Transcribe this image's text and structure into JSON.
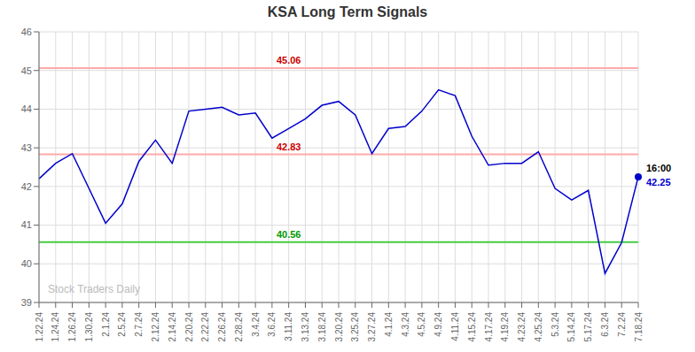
{
  "chart_data": {
    "type": "line",
    "title": "KSA Long Term Signals",
    "categories": [
      "1.22.24",
      "1.24.24",
      "1.26.24",
      "1.30.24",
      "2.1.24",
      "2.5.24",
      "2.7.24",
      "2.12.24",
      "2.14.24",
      "2.20.24",
      "2.22.24",
      "2.26.24",
      "2.28.24",
      "3.4.24",
      "3.6.24",
      "3.11.24",
      "3.13.24",
      "3.18.24",
      "3.20.24",
      "3.25.24",
      "3.27.24",
      "4.1.24",
      "4.3.24",
      "4.5.24",
      "4.9.24",
      "4.11.24",
      "4.15.24",
      "4.17.24",
      "4.19.24",
      "4.23.24",
      "4.25.24",
      "5.3.24",
      "5.14.24",
      "5.17.24",
      "6.3.24",
      "7.2.24",
      "7.18.24"
    ],
    "values": [
      42.2,
      42.6,
      42.85,
      41.95,
      41.05,
      41.55,
      42.65,
      43.2,
      42.6,
      43.95,
      44.0,
      44.05,
      43.85,
      43.9,
      43.25,
      43.5,
      43.75,
      44.1,
      44.2,
      43.85,
      42.85,
      43.5,
      43.55,
      43.95,
      44.5,
      44.35,
      43.3,
      42.55,
      42.6,
      42.6,
      42.9,
      41.95,
      41.65,
      41.9,
      39.75,
      40.55,
      42.25
    ],
    "color": "#0000cc",
    "ylim": [
      39,
      46
    ],
    "yticks": [
      39,
      40,
      41,
      42,
      43,
      44,
      45,
      46
    ],
    "grid": true,
    "hlines": [
      {
        "value": 45.06,
        "color": "#ffaaaa"
      },
      {
        "value": 42.83,
        "color": "#ffaaaa"
      },
      {
        "value": 40.56,
        "color": "#44cc44"
      }
    ],
    "annotations": [
      {
        "text": "45.06",
        "x": "3.11.24",
        "y": 45.06,
        "color": "#cc0000"
      },
      {
        "text": "42.83",
        "x": "3.11.24",
        "y": 42.83,
        "color": "#cc0000"
      },
      {
        "text": "40.56",
        "x": "3.11.24",
        "y": 40.56,
        "color": "#009900"
      }
    ],
    "end_labels": [
      {
        "text": "16:00",
        "color": "#000000"
      },
      {
        "text": "42.25",
        "color": "#0000cc"
      }
    ],
    "watermark": {
      "text": "Stock Traders Daily",
      "color": "#bbbbbb"
    }
  }
}
